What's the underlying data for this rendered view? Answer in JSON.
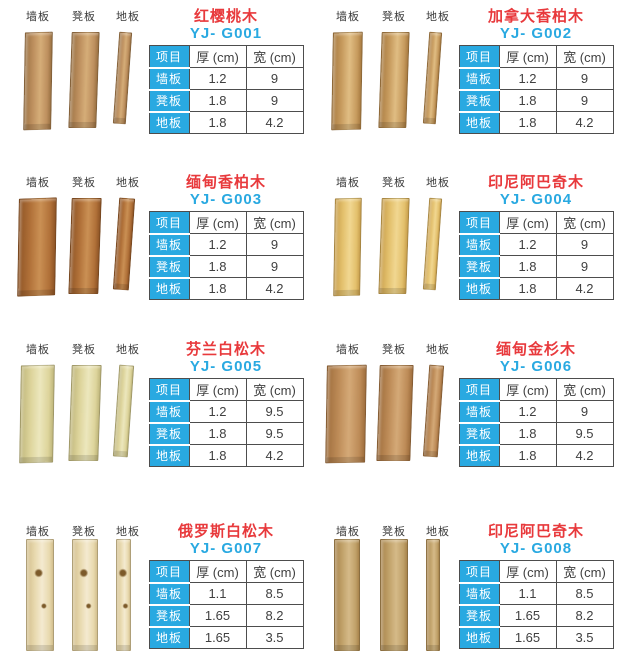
{
  "page": {
    "background": "#ffffff"
  },
  "colors": {
    "accent_blue": "#29a9e1",
    "title_red": "#e8393c",
    "table_border": "#4d4d4d",
    "table_text": "#404040",
    "label_text": "#3a3a3a"
  },
  "catalog": {
    "plank_labels": [
      "墙板",
      "凳板",
      "地板"
    ],
    "table": {
      "headers": [
        "项目",
        "厚 (cm)",
        "宽 (cm)"
      ],
      "row_labels": [
        "墙板",
        "凳板",
        "地板"
      ]
    },
    "products": [
      {
        "name": "红樱桃木",
        "model": "YJ- G001",
        "wood": {
          "base": "#bd8f5e",
          "light": "#d5ad78",
          "dark": "#9c7344"
        },
        "specs": [
          [
            "1.2",
            "9"
          ],
          [
            "1.8",
            "9"
          ],
          [
            "1.8",
            "4.2"
          ]
        ]
      },
      {
        "name": "加拿大香柏木",
        "model": "YJ- G002",
        "wood": {
          "base": "#c69a5d",
          "light": "#e0bd83",
          "dark": "#a97c42"
        },
        "specs": [
          [
            "1.2",
            "9"
          ],
          [
            "1.8",
            "9"
          ],
          [
            "1.8",
            "4.2"
          ]
        ]
      },
      {
        "name": "缅甸香柏木",
        "model": "YJ- G003",
        "wood": {
          "base": "#b07038",
          "light": "#ca9054",
          "dark": "#8f5526"
        },
        "specs": [
          [
            "1.2",
            "9"
          ],
          [
            "1.8",
            "9"
          ],
          [
            "1.8",
            "4.2"
          ]
        ]
      },
      {
        "name": "印尼阿巴奇木",
        "model": "YJ- G004",
        "wood": {
          "base": "#e3c06c",
          "light": "#f1d791",
          "dark": "#c9a04e"
        },
        "specs": [
          [
            "1.2",
            "9"
          ],
          [
            "1.8",
            "9"
          ],
          [
            "1.8",
            "4.2"
          ]
        ]
      },
      {
        "name": "芬兰白松木",
        "model": "YJ- G005",
        "wood": {
          "base": "#ddd49b",
          "light": "#ece7bd",
          "dark": "#c0b77c"
        },
        "specs": [
          [
            "1.2",
            "9.5"
          ],
          [
            "1.8",
            "9.5"
          ],
          [
            "1.8",
            "4.2"
          ]
        ]
      },
      {
        "name": "缅甸金杉木",
        "model": "YJ- G006",
        "wood": {
          "base": "#bd8b57",
          "light": "#d4a977",
          "dark": "#a06f3e"
        },
        "specs": [
          [
            "1.2",
            "9"
          ],
          [
            "1.8",
            "9.5"
          ],
          [
            "1.8",
            "4.2"
          ]
        ]
      },
      {
        "name": "俄罗斯白松木",
        "model": "YJ- G007",
        "wood": {
          "base": "#e8d9ae",
          "light": "#f4ead0",
          "dark": "#d3bf8e",
          "knot": "#7c5a2a"
        },
        "specs": [
          [
            "1.1",
            "8.5"
          ],
          [
            "1.65",
            "8.2"
          ],
          [
            "1.65",
            "3.5"
          ]
        ]
      },
      {
        "name": "印尼阿巴奇木",
        "model": "YJ- G008",
        "wood": {
          "base": "#c0a169",
          "light": "#d5ba88",
          "dark": "#a8844c"
        },
        "specs": [
          [
            "1.1",
            "8.5"
          ],
          [
            "1.65",
            "8.2"
          ],
          [
            "1.65",
            "3.5"
          ]
        ]
      }
    ]
  }
}
